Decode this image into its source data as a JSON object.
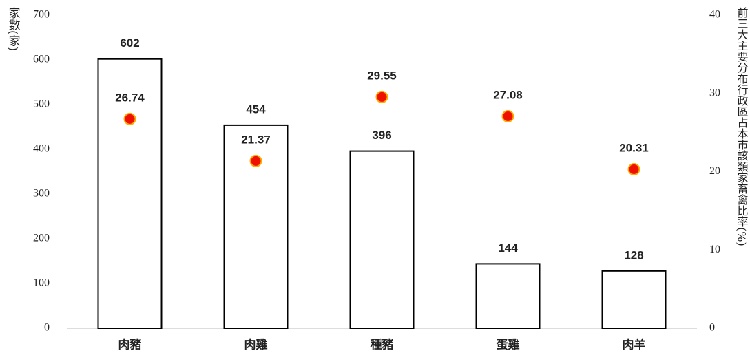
{
  "chart_data": {
    "type": "bar",
    "ylabel": "家數(家)",
    "y2label": "前三大主要分布行政區占本市該類家畜禽比率(%)",
    "categories": [
      "肉豬",
      "肉雞",
      "種豬",
      "蛋雞",
      "肉羊"
    ],
    "series": [
      {
        "type": "bar",
        "color": "#ffffff",
        "values": [
          602,
          454,
          396,
          144,
          128
        ]
      },
      {
        "type": "scatter",
        "axis": "y2",
        "color": "#ee1100",
        "values": [
          26.74,
          21.37,
          29.55,
          27.08,
          20.31
        ]
      }
    ],
    "ylim": [
      0,
      700
    ],
    "yticks": [
      0,
      100,
      200,
      300,
      400,
      500,
      600,
      700
    ],
    "y2lim": [
      0,
      40
    ],
    "y2ticks": [
      0,
      10,
      20,
      30,
      40
    ],
    "grid": false
  }
}
